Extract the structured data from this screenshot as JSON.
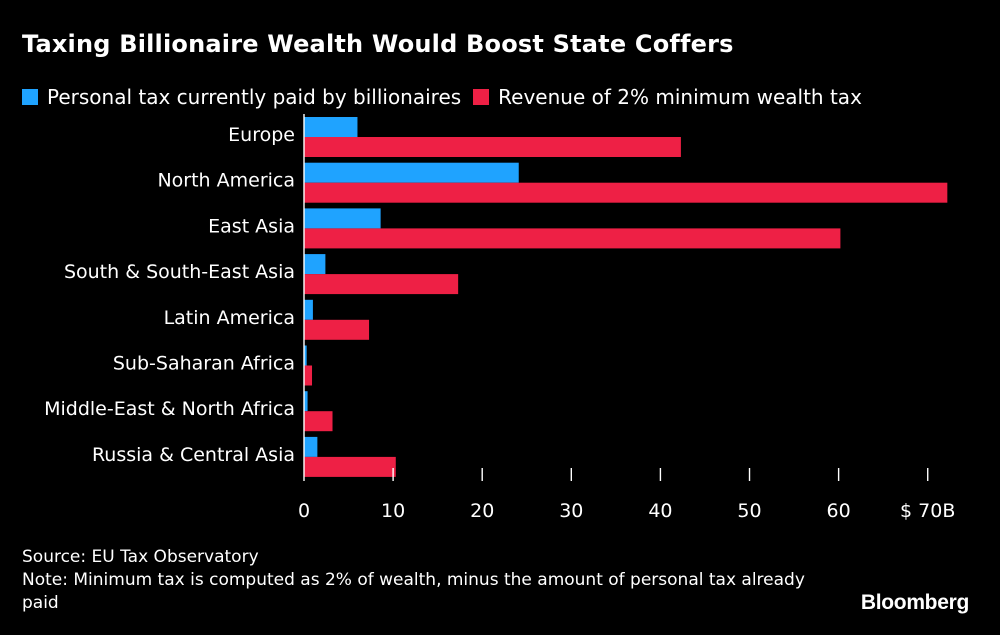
{
  "title": "Taxing Billionaire Wealth Would Boost State Coffers",
  "chart_data": {
    "type": "bar",
    "orientation": "horizontal",
    "categories": [
      "Europe",
      "North America",
      "East Asia",
      "South & South-East Asia",
      "Latin America",
      "Sub-Saharan Africa",
      "Middle-East & North Africa",
      "Russia & Central Asia"
    ],
    "series": [
      {
        "name": "Personal tax currently paid by billionaires",
        "color": "#1fa3ff",
        "values": [
          6.0,
          24.1,
          8.6,
          2.4,
          1.0,
          0.3,
          0.4,
          1.5
        ]
      },
      {
        "name": "Revenue of 2% minimum wealth tax",
        "color": "#ee2045",
        "values": [
          42.3,
          72.2,
          60.2,
          17.3,
          7.3,
          0.9,
          3.2,
          10.3
        ]
      }
    ],
    "x_ticks": [
      "0",
      "10",
      "20",
      "30",
      "40",
      "50",
      "60",
      "$ 70B"
    ],
    "xlim": [
      0,
      72.5
    ],
    "grid": false,
    "legend_position": "top-left"
  },
  "footer": {
    "source": "Source: EU Tax Observatory",
    "note": "Note: Minimum tax is computed as 2% of wealth, minus the amount of personal tax already paid",
    "brand": "Bloomberg"
  }
}
